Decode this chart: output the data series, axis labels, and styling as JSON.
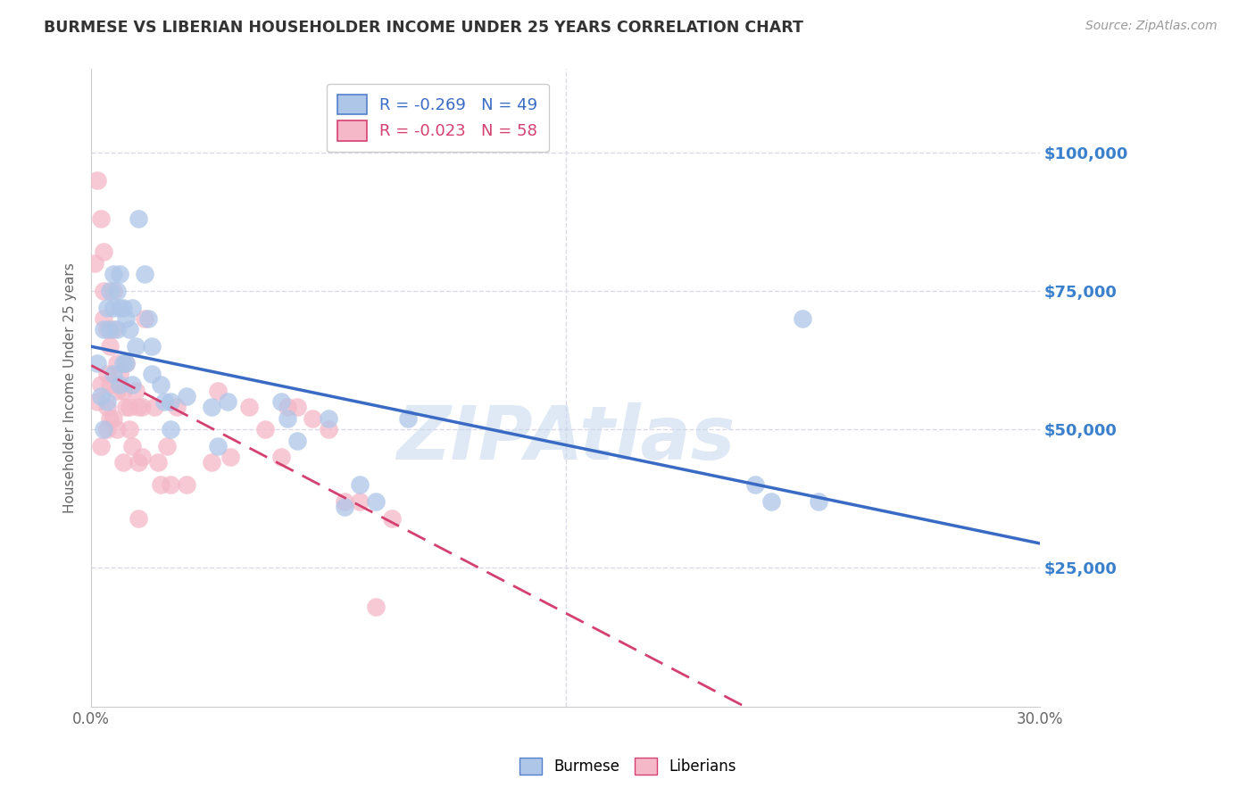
{
  "title": "BURMESE VS LIBERIAN HOUSEHOLDER INCOME UNDER 25 YEARS CORRELATION CHART",
  "source": "Source: ZipAtlas.com",
  "ylabel": "Householder Income Under 25 years",
  "xlim": [
    0.0,
    0.3
  ],
  "ylim": [
    0,
    115000
  ],
  "xticks": [
    0.0,
    0.05,
    0.1,
    0.15,
    0.2,
    0.25,
    0.3
  ],
  "xticklabels": [
    "0.0%",
    "",
    "",
    "",
    "",
    "",
    "30.0%"
  ],
  "ytick_labels_right": [
    "$25,000",
    "$50,000",
    "$75,000",
    "$100,000"
  ],
  "ytick_values_right": [
    25000,
    50000,
    75000,
    100000
  ],
  "burmese_color": "#aec6e8",
  "liberian_color": "#f4b8c8",
  "trendline_burmese_color": "#3a6bc4",
  "trendline_liberian_color": "#d44070",
  "background_color": "#ffffff",
  "grid_color": "#ddd8e8",
  "watermark": "ZIPAtlas",
  "burmese_x": [
    0.002,
    0.003,
    0.004,
    0.004,
    0.005,
    0.005,
    0.006,
    0.006,
    0.007,
    0.007,
    0.007,
    0.008,
    0.008,
    0.009,
    0.009,
    0.009,
    0.01,
    0.01,
    0.011,
    0.011,
    0.012,
    0.013,
    0.013,
    0.014,
    0.015,
    0.017,
    0.018,
    0.019,
    0.019,
    0.022,
    0.023,
    0.025,
    0.025,
    0.03,
    0.038,
    0.04,
    0.043,
    0.06,
    0.062,
    0.065,
    0.075,
    0.08,
    0.085,
    0.09,
    0.1,
    0.21,
    0.215,
    0.225,
    0.23
  ],
  "burmese_y": [
    62000,
    56000,
    68000,
    50000,
    72000,
    55000,
    75000,
    68000,
    78000,
    72000,
    60000,
    75000,
    68000,
    78000,
    72000,
    58000,
    72000,
    62000,
    70000,
    62000,
    68000,
    72000,
    58000,
    65000,
    88000,
    78000,
    70000,
    65000,
    60000,
    58000,
    55000,
    55000,
    50000,
    56000,
    54000,
    47000,
    55000,
    55000,
    52000,
    48000,
    52000,
    36000,
    40000,
    37000,
    52000,
    40000,
    37000,
    70000,
    37000
  ],
  "liberian_x": [
    0.001,
    0.002,
    0.002,
    0.003,
    0.003,
    0.003,
    0.004,
    0.004,
    0.004,
    0.005,
    0.005,
    0.005,
    0.005,
    0.006,
    0.006,
    0.006,
    0.007,
    0.007,
    0.007,
    0.008,
    0.008,
    0.008,
    0.009,
    0.01,
    0.01,
    0.011,
    0.011,
    0.012,
    0.012,
    0.013,
    0.014,
    0.015,
    0.015,
    0.016,
    0.016,
    0.017,
    0.02,
    0.021,
    0.022,
    0.024,
    0.025,
    0.027,
    0.03,
    0.038,
    0.04,
    0.044,
    0.05,
    0.055,
    0.06,
    0.062,
    0.065,
    0.07,
    0.075,
    0.08,
    0.085,
    0.09,
    0.095,
    0.015
  ],
  "liberian_y": [
    80000,
    95000,
    55000,
    88000,
    58000,
    47000,
    82000,
    75000,
    70000,
    68000,
    60000,
    54000,
    50000,
    65000,
    58000,
    52000,
    75000,
    68000,
    52000,
    62000,
    57000,
    50000,
    60000,
    57000,
    44000,
    62000,
    54000,
    54000,
    50000,
    47000,
    57000,
    54000,
    44000,
    54000,
    45000,
    70000,
    54000,
    44000,
    40000,
    47000,
    40000,
    54000,
    40000,
    44000,
    57000,
    45000,
    54000,
    50000,
    45000,
    54000,
    54000,
    52000,
    50000,
    37000,
    37000,
    18000,
    34000,
    34000
  ]
}
